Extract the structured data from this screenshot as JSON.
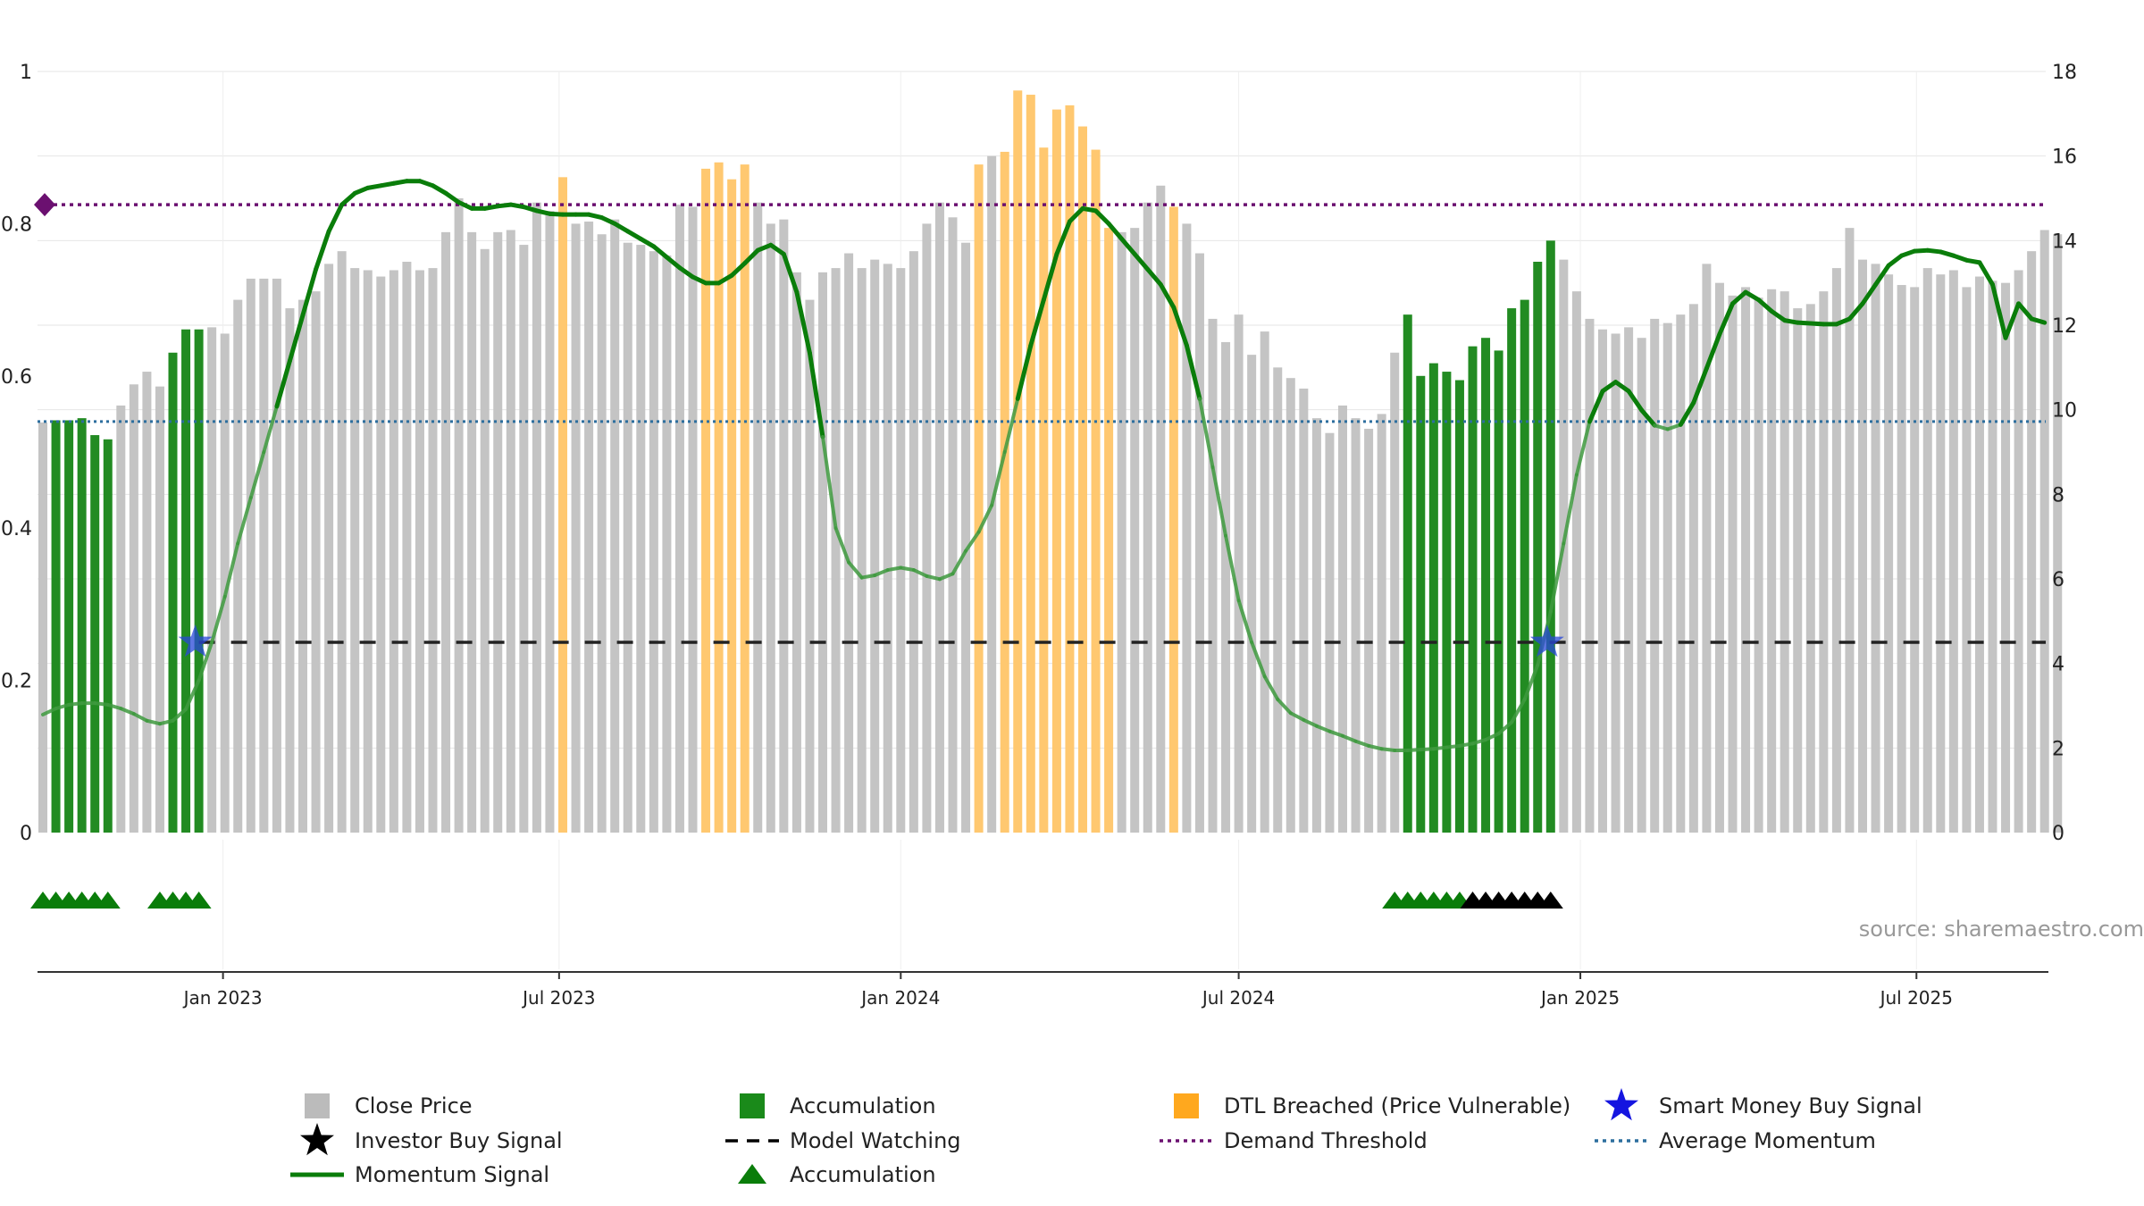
{
  "chart_data": {
    "type": "bar",
    "x_start": "2022-09-26",
    "x_step_days": 7,
    "left_axis": {
      "ylim": [
        0,
        1
      ],
      "ticks": [
        0,
        0.2,
        0.4,
        0.6,
        0.8
      ],
      "top_tick": 1
    },
    "right_axis": {
      "ylim": [
        0,
        18
      ],
      "ticks": [
        0,
        2,
        4,
        6,
        8,
        10,
        12,
        14,
        16,
        18
      ]
    },
    "x_ticks": [
      {
        "label": "Jan 2023",
        "date": "2023-01-01"
      },
      {
        "label": "Jul 2023",
        "date": "2023-07-01"
      },
      {
        "label": "Jan 2024",
        "date": "2024-01-01"
      },
      {
        "label": "Jul 2024",
        "date": "2024-07-01"
      },
      {
        "label": "Jan 2025",
        "date": "2025-01-01"
      },
      {
        "label": "Jul 2025",
        "date": "2025-07-01"
      }
    ],
    "close_price": [
      9.7,
      9.75,
      9.75,
      9.8,
      9.4,
      9.3,
      10.1,
      10.6,
      10.9,
      10.55,
      11.35,
      11.9,
      11.9,
      11.95,
      11.8,
      12.6,
      13.1,
      13.1,
      13.1,
      12.4,
      12.6,
      12.8,
      13.45,
      13.75,
      13.35,
      13.3,
      13.15,
      13.3,
      13.5,
      13.3,
      13.35,
      14.2,
      15.0,
      14.2,
      13.8,
      14.2,
      14.25,
      13.9,
      14.9,
      14.7,
      15.5,
      14.4,
      14.45,
      14.15,
      14.5,
      13.95,
      13.9,
      13.75,
      13.65,
      14.85,
      14.8,
      15.7,
      15.85,
      15.45,
      15.8,
      14.9,
      14.4,
      14.5,
      13.25,
      12.6,
      13.25,
      13.35,
      13.7,
      13.35,
      13.55,
      13.45,
      13.35,
      13.75,
      14.4,
      14.9,
      14.55,
      13.95,
      15.8,
      16.0,
      16.1,
      17.55,
      17.45,
      16.2,
      17.1,
      17.2,
      16.7,
      16.15,
      14.3,
      14.2,
      14.3,
      14.9,
      15.3,
      14.8,
      14.4,
      13.7,
      12.15,
      11.6,
      12.25,
      11.3,
      11.85,
      11.0,
      10.75,
      10.5,
      9.8,
      9.45,
      10.1,
      9.8,
      9.55,
      9.9,
      11.35,
      12.25,
      10.8,
      11.1,
      10.9,
      10.7,
      11.5,
      11.7,
      11.4,
      12.4,
      12.6,
      13.5,
      14.0,
      13.55,
      12.8,
      12.15,
      11.9,
      11.8,
      11.95,
      11.7,
      12.15,
      12.05,
      12.25,
      12.5,
      13.45,
      13.0,
      12.7,
      12.9,
      12.65,
      12.85,
      12.8,
      12.4,
      12.5,
      12.8,
      13.35,
      14.3,
      13.55,
      13.45,
      13.2,
      12.95,
      12.9,
      13.35,
      13.2,
      13.3,
      12.9,
      13.15,
      13.05,
      13.0,
      13.3,
      13.75,
      14.25,
      14.15
    ],
    "momentum": [
      0.155,
      0.163,
      0.168,
      0.17,
      0.17,
      0.168,
      0.163,
      0.156,
      0.147,
      0.143,
      0.147,
      0.162,
      0.2,
      0.25,
      0.31,
      0.38,
      0.44,
      0.5,
      0.56,
      0.62,
      0.68,
      0.74,
      0.79,
      0.825,
      0.84,
      0.847,
      0.85,
      0.853,
      0.856,
      0.856,
      0.85,
      0.84,
      0.828,
      0.82,
      0.82,
      0.823,
      0.825,
      0.822,
      0.817,
      0.813,
      0.812,
      0.812,
      0.812,
      0.808,
      0.8,
      0.79,
      0.78,
      0.77,
      0.756,
      0.742,
      0.73,
      0.722,
      0.722,
      0.732,
      0.748,
      0.765,
      0.772,
      0.76,
      0.71,
      0.63,
      0.52,
      0.4,
      0.355,
      0.335,
      0.338,
      0.345,
      0.348,
      0.345,
      0.337,
      0.333,
      0.34,
      0.37,
      0.395,
      0.43,
      0.5,
      0.57,
      0.64,
      0.7,
      0.76,
      0.803,
      0.82,
      0.817,
      0.8,
      0.78,
      0.76,
      0.74,
      0.72,
      0.69,
      0.64,
      0.57,
      0.48,
      0.39,
      0.305,
      0.25,
      0.205,
      0.175,
      0.157,
      0.148,
      0.14,
      0.133,
      0.127,
      0.12,
      0.114,
      0.11,
      0.108,
      0.108,
      0.109,
      0.11,
      0.112,
      0.114,
      0.117,
      0.122,
      0.13,
      0.145,
      0.175,
      0.22,
      0.29,
      0.38,
      0.47,
      0.54,
      0.58,
      0.592,
      0.58,
      0.555,
      0.535,
      0.53,
      0.536,
      0.565,
      0.61,
      0.655,
      0.695,
      0.71,
      0.7,
      0.685,
      0.673,
      0.67,
      0.669,
      0.668,
      0.668,
      0.675,
      0.695,
      0.72,
      0.745,
      0.758,
      0.764,
      0.765,
      0.763,
      0.758,
      0.752,
      0.749,
      0.72,
      0.65,
      0.695,
      0.675,
      0.67
    ],
    "accumulation_ranges": [
      [
        1,
        5
      ],
      [
        10,
        12
      ],
      [
        105,
        116
      ]
    ],
    "dtl_breached_ranges": [
      [
        40,
        40
      ],
      [
        51,
        54
      ],
      [
        72,
        72
      ],
      [
        74,
        82
      ],
      [
        87,
        87
      ]
    ],
    "accumulation_triangle_ranges": [
      [
        0,
        5
      ],
      [
        9,
        12
      ],
      [
        104,
        109
      ]
    ],
    "investor_buy_triangle_ranges": [
      [
        110,
        116
      ]
    ],
    "smart_money_buy_signal_x": [
      12,
      116
    ],
    "model_watching_level": 0.25,
    "model_watching_start_x": 12,
    "average_momentum": 0.54,
    "demand_threshold": 0.825,
    "legend": [
      {
        "label": "Close Price",
        "symbol": "square",
        "color": "#bbbbbb"
      },
      {
        "label": "Accumulation",
        "symbol": "square",
        "color": "#1a8a1a"
      },
      {
        "label": "DTL Breached (Price Vulnerable)",
        "symbol": "square",
        "color": "#ffa81e"
      },
      {
        "label": "Smart Money Buy Signal",
        "symbol": "star",
        "color": "#1515e0"
      },
      {
        "label": "Investor Buy Signal",
        "symbol": "star",
        "color": "#000000"
      },
      {
        "label": "Model Watching",
        "symbol": "dashed",
        "color": "#000000"
      },
      {
        "label": "Average Momentum",
        "symbol": "dotted",
        "color": "#2c6e9e"
      },
      {
        "label": "Demand Threshold",
        "symbol": "dotted",
        "color": "#6b1070"
      },
      {
        "label": "Momentum Signal",
        "symbol": "line",
        "color": "#0a7d0a"
      },
      {
        "label": "Accumulation",
        "symbol": "triangle",
        "color": "#0a7d0a"
      }
    ],
    "source": "source: sharemaestro.com",
    "colors": {
      "close_price": "#c4c4c4",
      "accumulation": "#228b22",
      "dtl_breached": "#ffc870",
      "momentum": "#0a7d0a",
      "average_momentum": "#2c6e9e",
      "demand_threshold": "#6b1070",
      "smart_money": "#2a48d8",
      "investor": "#000000"
    }
  }
}
